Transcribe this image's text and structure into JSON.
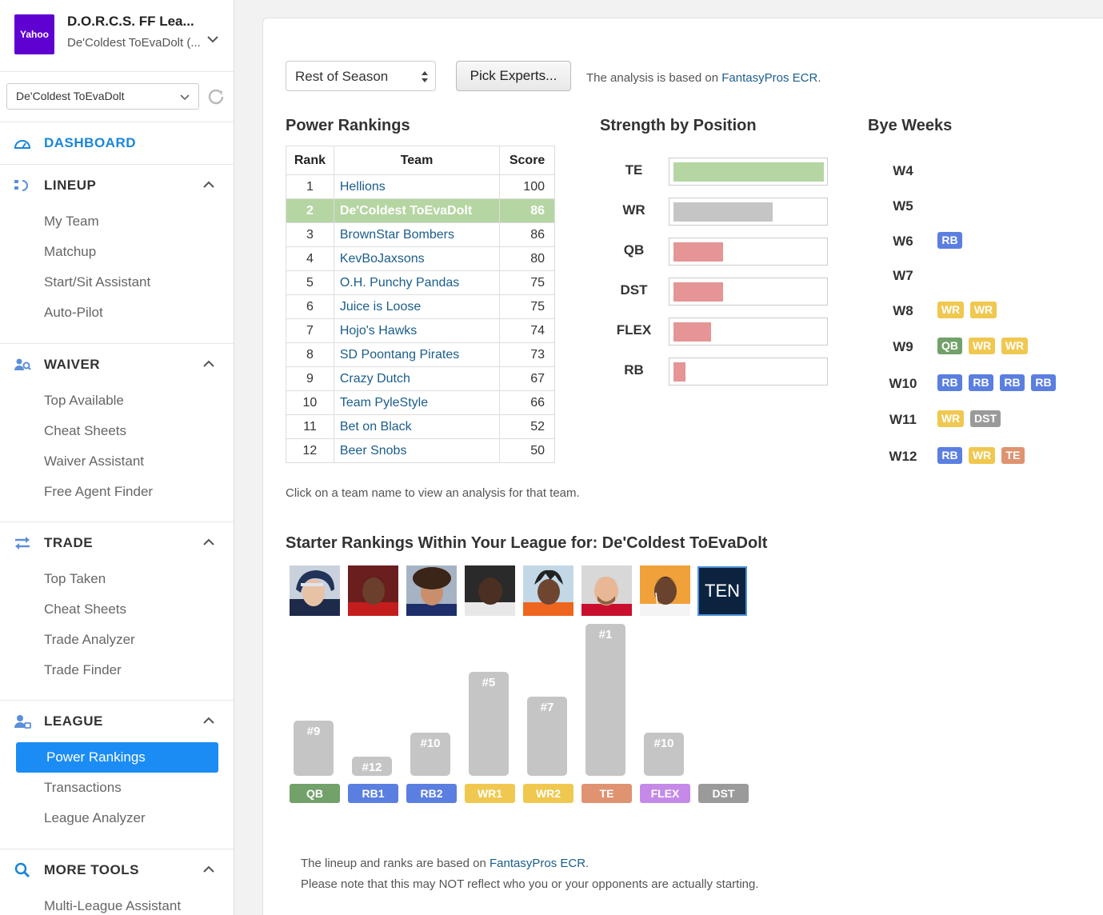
{
  "sidebar": {
    "logo_text": "Yahoo",
    "league_name": "D.O.R.C.S. FF Lea...",
    "league_team": "De'Coldest ToEvaDolt (...",
    "team_select": "De'Coldest ToEvaDolt",
    "dashboard": "DASHBOARD",
    "sections": [
      {
        "title": "LINEUP",
        "items": [
          "My Team",
          "Matchup",
          "Start/Sit Assistant",
          "Auto-Pilot"
        ]
      },
      {
        "title": "WAIVER",
        "items": [
          "Top Available",
          "Cheat Sheets",
          "Waiver Assistant",
          "Free Agent Finder"
        ]
      },
      {
        "title": "TRADE",
        "items": [
          "Top Taken",
          "Cheat Sheets",
          "Trade Analyzer",
          "Trade Finder"
        ]
      },
      {
        "title": "LEAGUE",
        "items": [
          "Power Rankings",
          "Transactions",
          "League Analyzer"
        ]
      },
      {
        "title": "MORE TOOLS",
        "items": [
          "Multi-League Assistant"
        ]
      }
    ]
  },
  "controls": {
    "season_select": "Rest of Season",
    "pick_experts": "Pick Experts...",
    "analysis_prefix": "The analysis is based on ",
    "analysis_link": "FantasyPros ECR",
    "analysis_suffix": "."
  },
  "power_rankings": {
    "title": "Power Rankings",
    "headers": [
      "Rank",
      "Team",
      "Score"
    ],
    "rows": [
      {
        "rank": "1",
        "team": "Hellions",
        "score": "100"
      },
      {
        "rank": "2",
        "team": "De'Coldest ToEvaDolt",
        "score": "86",
        "highlight": true
      },
      {
        "rank": "3",
        "team": "BrownStar Bombers",
        "score": "86"
      },
      {
        "rank": "4",
        "team": "KevBoJaxsons",
        "score": "80"
      },
      {
        "rank": "5",
        "team": "O.H. Punchy Pandas",
        "score": "75"
      },
      {
        "rank": "6",
        "team": "Juice is Loose",
        "score": "75"
      },
      {
        "rank": "7",
        "team": "Hojo's Hawks",
        "score": "74"
      },
      {
        "rank": "8",
        "team": "SD Poontang Pirates",
        "score": "73"
      },
      {
        "rank": "9",
        "team": "Crazy Dutch",
        "score": "67"
      },
      {
        "rank": "10",
        "team": "Team PyleStyle",
        "score": "66"
      },
      {
        "rank": "11",
        "team": "Bet on Black",
        "score": "52"
      },
      {
        "rank": "12",
        "team": "Beer Snobs",
        "score": "50"
      }
    ],
    "note": "Click on a team name to view an analysis for that team."
  },
  "strength": {
    "title": "Strength by Position",
    "positions": [
      {
        "pos": "TE",
        "value": 1.0,
        "color": "#b5d5a2"
      },
      {
        "pos": "WR",
        "value": 0.66,
        "color": "#c5c5c5"
      },
      {
        "pos": "QB",
        "value": 0.33,
        "color": "#e59595"
      },
      {
        "pos": "DST",
        "value": 0.33,
        "color": "#e59595"
      },
      {
        "pos": "FLEX",
        "value": 0.25,
        "color": "#e59595"
      },
      {
        "pos": "RB",
        "value": 0.08,
        "color": "#e59595"
      }
    ]
  },
  "bye_weeks": {
    "title": "Bye Weeks",
    "weeks": [
      {
        "week": "W4",
        "tags": []
      },
      {
        "week": "W5",
        "tags": []
      },
      {
        "week": "W6",
        "tags": [
          "RB"
        ]
      },
      {
        "week": "W7",
        "tags": []
      },
      {
        "week": "W8",
        "tags": [
          "WR",
          "WR"
        ]
      },
      {
        "week": "W9",
        "tags": [
          "QB",
          "WR",
          "WR"
        ]
      },
      {
        "week": "W10",
        "tags": [
          "RB",
          "RB",
          "RB",
          "RB"
        ]
      },
      {
        "week": "W11",
        "tags": [
          "WR",
          "DST"
        ]
      },
      {
        "week": "W12",
        "tags": [
          "RB",
          "WR",
          "TE"
        ]
      }
    ]
  },
  "pos_colors": {
    "QB": "#72a16a",
    "RB": "#5b7fe0",
    "WR": "#f0c850",
    "TE": "#df9370",
    "FLEX": "#c58ae8",
    "DST": "#9a9a9a"
  },
  "starters": {
    "title_prefix": "Starter Rankings Within Your League for: ",
    "team": "De'Coldest ToEvaDolt",
    "dst_logo": "TEN",
    "slots": [
      {
        "slot": "QB",
        "pos": "QB",
        "rank": 9,
        "label": "#9"
      },
      {
        "slot": "RB1",
        "pos": "RB",
        "rank": 12,
        "label": "#12"
      },
      {
        "slot": "RB2",
        "pos": "RB",
        "rank": 10,
        "label": "#10"
      },
      {
        "slot": "WR1",
        "pos": "WR",
        "rank": 5,
        "label": "#5"
      },
      {
        "slot": "WR2",
        "pos": "WR",
        "rank": 7,
        "label": "#7"
      },
      {
        "slot": "TE",
        "pos": "TE",
        "rank": 1,
        "label": "#1"
      },
      {
        "slot": "FLEX",
        "pos": "FLEX",
        "rank": 10,
        "label": "#10"
      },
      {
        "slot": "DST",
        "pos": "DST",
        "rank": null,
        "label": ""
      }
    ],
    "note1_prefix": "The lineup and ranks are based on ",
    "note1_link": "FantasyPros ECR",
    "note1_suffix": ".",
    "note2": "Please note that this may NOT reflect who you or your opponents are actually starting."
  }
}
